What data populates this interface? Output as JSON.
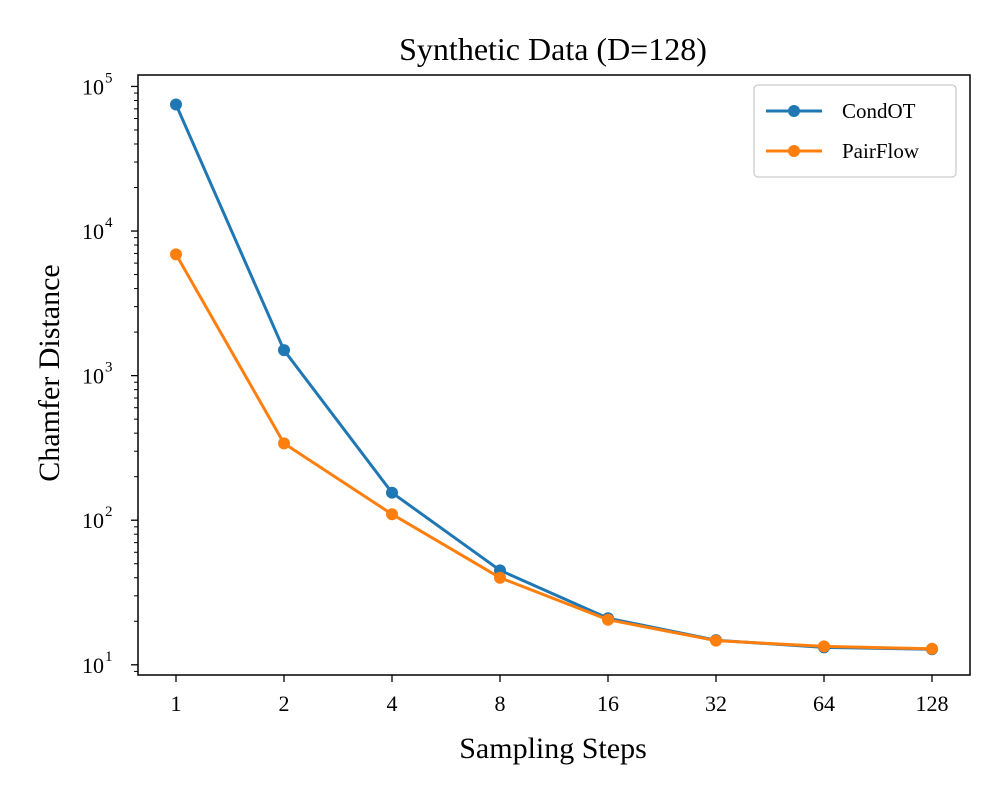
{
  "chart_data": {
    "type": "line",
    "title": "Synthetic Data (D=128)",
    "xlabel": "Sampling Steps",
    "ylabel": "Chamfer Distance",
    "categories": [
      "1",
      "2",
      "4",
      "8",
      "16",
      "32",
      "64",
      "128"
    ],
    "yscale": "log",
    "ylim": [
      8.5,
      120000
    ],
    "y_ticks": [
      {
        "base": "10",
        "exp": "1",
        "value": 10
      },
      {
        "base": "10",
        "exp": "2",
        "value": 100
      },
      {
        "base": "10",
        "exp": "3",
        "value": 1000
      },
      {
        "base": "10",
        "exp": "4",
        "value": 10000
      },
      {
        "base": "10",
        "exp": "5",
        "value": 100000
      }
    ],
    "legend_position": "top-right",
    "series": [
      {
        "name": "CondOT",
        "color": "#1f77b4",
        "values": [
          75000,
          1500,
          155,
          45,
          21,
          14.8,
          13.2,
          12.8
        ]
      },
      {
        "name": "PairFlow",
        "color": "#ff7f0e",
        "values": [
          6900,
          340,
          110,
          40,
          20.5,
          14.7,
          13.4,
          12.9
        ]
      }
    ]
  }
}
